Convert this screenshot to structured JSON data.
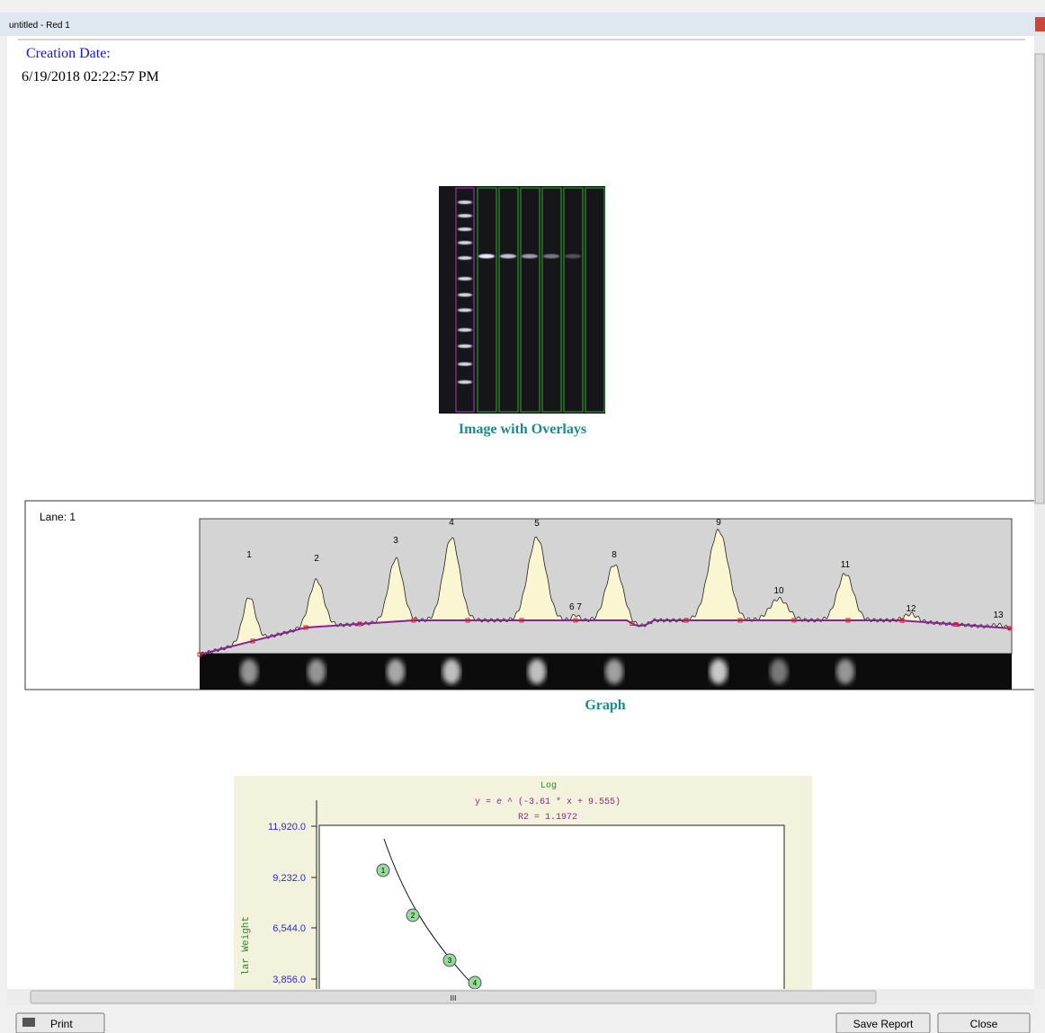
{
  "window": {
    "title": "untitled - Red 1"
  },
  "report": {
    "creation_label": "Creation Date:",
    "creation_date": "6/19/2018 02:22:57 PM",
    "image_caption": "Image with Overlays",
    "graph": {
      "lane_label": "Lane: 1",
      "peak_labels": [
        "1",
        "2",
        "3",
        "4",
        "5",
        "6 7",
        "8",
        "9",
        "10",
        "11",
        "12",
        "13"
      ],
      "caption": "Graph"
    },
    "standard_curve": {
      "title": "Log",
      "equation": "y = e ^ (-3.61 * x + 9.555)",
      "r2": "R2 = 1.1972",
      "y_axis_label": "lar Weight",
      "y_tick_labels": [
        "11,920.0",
        "9,232.0",
        "6,544.0",
        "3,856.0"
      ],
      "point_labels": [
        "1",
        "2",
        "3",
        "4"
      ]
    }
  },
  "scrollbar": {
    "grip": "III"
  },
  "buttons": {
    "print": "Print",
    "save_report": "Save Report",
    "close": "Close"
  }
}
